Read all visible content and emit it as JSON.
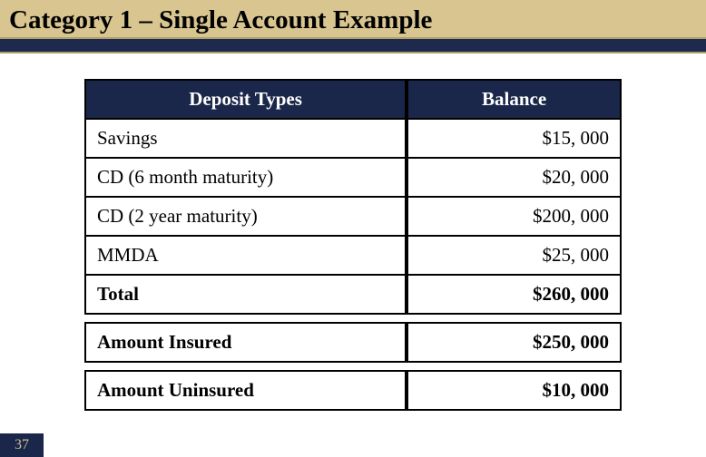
{
  "title": "Category 1 – Single Account Example",
  "colors": {
    "header_bg": "#1b274a",
    "header_text": "#ffffff",
    "title_bg": "#d9c590",
    "stripe_bg": "#1d2a4d",
    "cell_text": "#000000",
    "page_num_bg": "#1b274a",
    "page_num_text": "#cdbf8e"
  },
  "table": {
    "columns": [
      "Deposit Types",
      "Balance"
    ],
    "rows": [
      {
        "type": "Savings",
        "balance": "$15, 000",
        "bold": false
      },
      {
        "type": "CD (6 month maturity)",
        "balance": "$20, 000",
        "bold": false
      },
      {
        "type": "CD (2 year maturity)",
        "balance": "$200, 000",
        "bold": false
      },
      {
        "type": "MMDA",
        "balance": "$25, 000",
        "bold": false
      },
      {
        "type": "Total",
        "balance": "$260, 000",
        "bold": true
      }
    ],
    "summary": [
      {
        "type": "Amount Insured",
        "balance": "$250, 000"
      },
      {
        "type": "Amount Uninsured",
        "balance": "$10, 000"
      }
    ]
  },
  "page_number": "37"
}
